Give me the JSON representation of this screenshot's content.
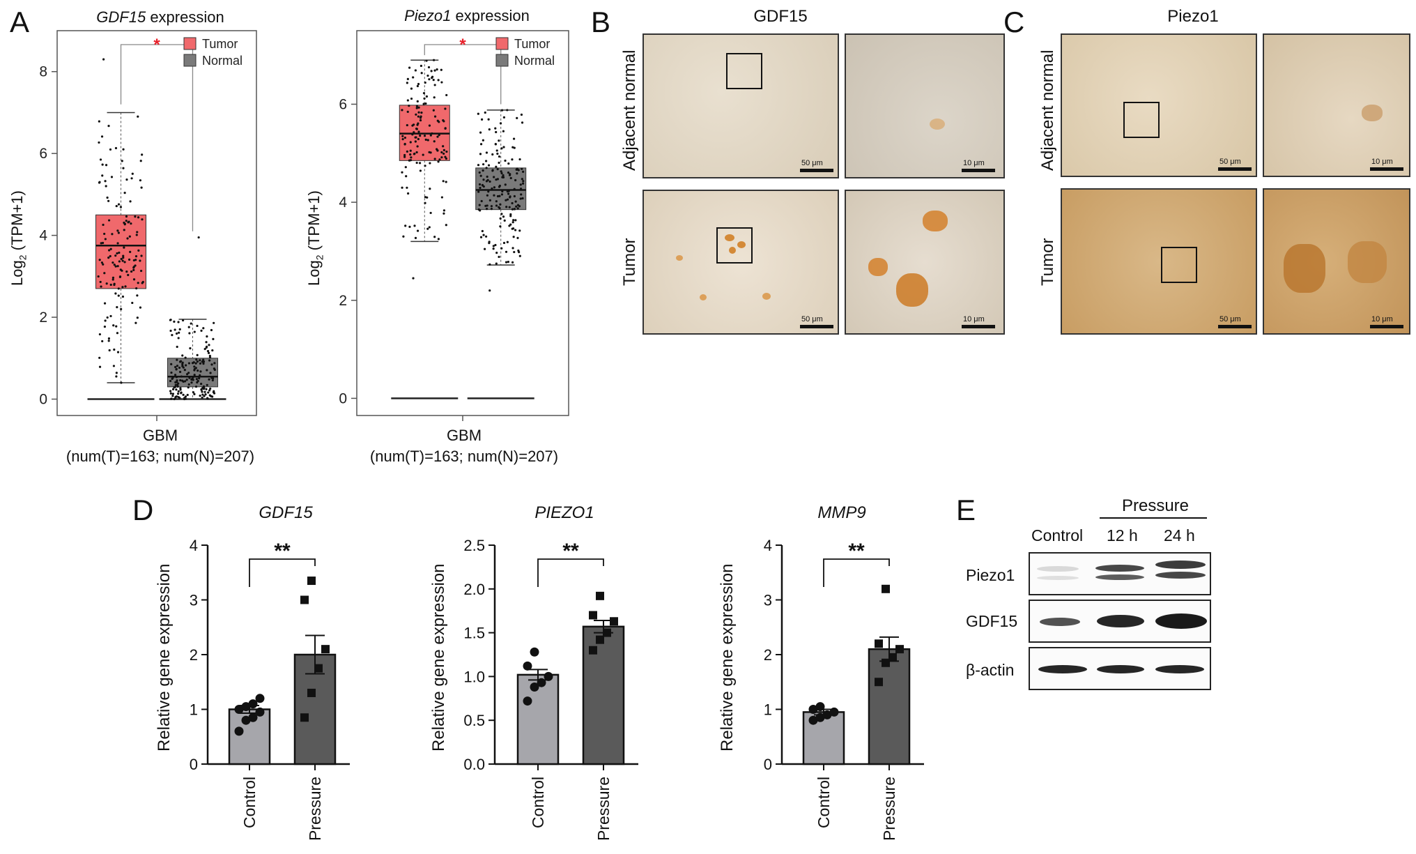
{
  "panels": {
    "a": "A",
    "b": "B",
    "c": "C",
    "d": "D",
    "e": "E"
  },
  "panel_a": {
    "plots": [
      {
        "title_italic": "GDF15",
        "title_rest": " expression",
        "ylabel_base": "Log",
        "ylabel_sub": "2",
        "ylabel_rest": " (TPM+1)",
        "xlabel": "GBM",
        "xlabel2": "(num(T)=163; num(N)=207)",
        "legend": [
          "Tumor",
          "Normal"
        ],
        "sig": "*"
      },
      {
        "title_italic": "Piezo1",
        "title_rest": " expression",
        "ylabel_base": "Log",
        "ylabel_sub": "2",
        "ylabel_rest": " (TPM+1)",
        "xlabel": "GBM",
        "xlabel2": "(num(T)=163; num(N)=207)",
        "legend": [
          "Tumor",
          "Normal"
        ],
        "sig": "*"
      }
    ]
  },
  "panel_b": {
    "title": "GDF15",
    "row_labels": [
      "Adjacent normal",
      "Tumor"
    ],
    "scale_low": "50 μm",
    "scale_high": "10 μm"
  },
  "panel_c": {
    "title": "Piezo1",
    "row_labels": [
      "Adjacent normal",
      "Tumor"
    ],
    "scale_low": "50 μm",
    "scale_high": "10 μm"
  },
  "panel_d": {
    "ylabel": "Relative gene expression",
    "categories": [
      "Control",
      "Pressure"
    ],
    "sig": "**"
  },
  "panel_e": {
    "group_label": "Pressure",
    "lanes": [
      "Control",
      "12 h",
      "24 h"
    ],
    "rows": [
      "Piezo1",
      "GDF15",
      "β-actin"
    ]
  },
  "colors": {
    "tumor": "#f0696c",
    "normal": "#7a7a7a",
    "control_bar": "#a6a6ab",
    "pressure_bar": "#5a5a5a",
    "sig_red": "#e8202a"
  },
  "chart_data": [
    {
      "type": "box",
      "panel": "A-left",
      "title": "GDF15 expression",
      "ylabel": "Log2 (TPM+1)",
      "xlabel": "GBM",
      "ylim": [
        -0.4,
        9
      ],
      "yticks": [
        0,
        2,
        4,
        6,
        8
      ],
      "series": [
        {
          "name": "Tumor",
          "min": 0.4,
          "q1": 2.7,
          "median": 3.75,
          "q3": 4.5,
          "max": 7.0,
          "outlier_max": 8.3
        },
        {
          "name": "Normal",
          "min": 0.0,
          "q1": 0.3,
          "median": 0.55,
          "q3": 1.0,
          "max": 1.95,
          "outlier_max": 3.95
        }
      ]
    },
    {
      "type": "box",
      "panel": "A-right",
      "title": "Piezo1 expression",
      "ylabel": "Log2 (TPM+1)",
      "xlabel": "GBM",
      "ylim": [
        -0.35,
        7.5
      ],
      "yticks": [
        0,
        2,
        4,
        6
      ],
      "series": [
        {
          "name": "Tumor",
          "min": 3.2,
          "q1": 4.85,
          "median": 5.4,
          "q3": 5.98,
          "max": 6.9,
          "outlier_min": 2.45
        },
        {
          "name": "Normal",
          "min": 2.72,
          "q1": 3.85,
          "median": 4.25,
          "q3": 4.7,
          "max": 5.88,
          "outlier_min": 2.2
        }
      ]
    },
    {
      "type": "bar",
      "panel": "D-1",
      "title": "GDF15",
      "categories": [
        "Control",
        "Pressure"
      ],
      "values": [
        1.0,
        2.0
      ],
      "sem": [
        0.07,
        0.35
      ],
      "points": [
        [
          0.6,
          0.8,
          0.85,
          0.95,
          1.0,
          1.05,
          1.1,
          1.2
        ],
        [
          0.85,
          1.3,
          1.75,
          2.1,
          3.0,
          3.35
        ]
      ],
      "ylim": [
        0,
        4
      ],
      "yticks": [
        0,
        1,
        2,
        3,
        4
      ],
      "ylabel": "Relative gene expression"
    },
    {
      "type": "bar",
      "panel": "D-2",
      "title": "PIEZO1",
      "categories": [
        "Control",
        "Pressure"
      ],
      "values": [
        1.02,
        1.57
      ],
      "sem": [
        0.06,
        0.07
      ],
      "points": [
        [
          0.72,
          0.88,
          0.93,
          1.0,
          1.12,
          1.28
        ],
        [
          1.3,
          1.42,
          1.5,
          1.63,
          1.7,
          1.92
        ]
      ],
      "ylim": [
        0,
        2.5
      ],
      "yticks": [
        0,
        0.5,
        1.0,
        1.5,
        2.0,
        2.5
      ],
      "ylabel": "Relative gene expression"
    },
    {
      "type": "bar",
      "panel": "D-3",
      "title": "MMP9",
      "categories": [
        "Control",
        "Pressure"
      ],
      "values": [
        0.95,
        2.1
      ],
      "sem": [
        0.05,
        0.22
      ],
      "points": [
        [
          0.8,
          0.85,
          0.9,
          0.95,
          1.0,
          1.05
        ],
        [
          1.5,
          1.85,
          1.95,
          2.1,
          2.2,
          3.2
        ]
      ],
      "ylim": [
        0,
        4
      ],
      "yticks": [
        0,
        1,
        2,
        3,
        4
      ],
      "ylabel": "Relative gene expression"
    }
  ]
}
